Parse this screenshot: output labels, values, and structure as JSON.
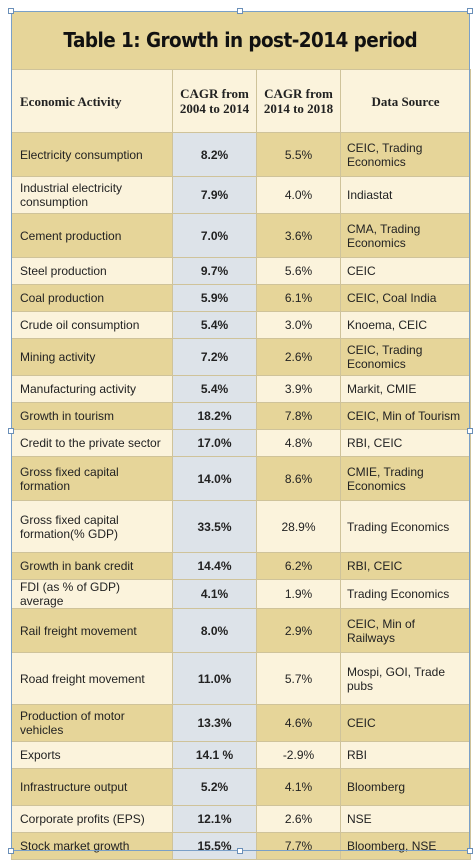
{
  "table": {
    "title": "Table 1: Growth in post-2014 period",
    "headers": [
      "Economic Activity",
      "CAGR from 2004 to 2014",
      "CAGR from 2014 to 2018",
      "Data Source"
    ],
    "rows": [
      [
        "Electricity consumption",
        "8.2%",
        "5.5%",
        "CEIC, Trading Economics"
      ],
      [
        "Industrial electricity consumption",
        "7.9%",
        "4.0%",
        "Indiastat"
      ],
      [
        "Cement production",
        "7.0%",
        "3.6%",
        "CMA, Trading Economics"
      ],
      [
        "Steel production",
        "9.7%",
        "5.6%",
        "CEIC"
      ],
      [
        "Coal production",
        "5.9%",
        "6.1%",
        "CEIC, Coal India"
      ],
      [
        "Crude oil consumption",
        "5.4%",
        "3.0%",
        "Knoema, CEIC"
      ],
      [
        "Mining activity",
        "7.2%",
        "2.6%",
        "CEIC, Trading Economics"
      ],
      [
        "Manufacturing activity",
        "5.4%",
        "3.9%",
        "Markit, CMIE"
      ],
      [
        "Growth in tourism",
        "18.2%",
        "7.8%",
        "CEIC, Min of Tourism"
      ],
      [
        "Credit to the private sector",
        "17.0%",
        "4.8%",
        "RBI, CEIC"
      ],
      [
        "Gross fixed capital formation",
        "14.0%",
        "8.6%",
        "CMIE, Trading Economics"
      ],
      [
        "Gross fixed capital formation(% GDP)",
        "33.5%",
        "28.9%",
        "Trading Economics"
      ],
      [
        "Growth in bank credit",
        "14.4%",
        "6.2%",
        "RBI, CEIC"
      ],
      [
        "FDI (as % of GDP) average",
        "4.1%",
        "1.9%",
        "Trading Economics"
      ],
      [
        "Rail freight movement",
        "8.0%",
        "2.9%",
        "CEIC, Min of Railways"
      ],
      [
        "Road freight movement",
        "11.0%",
        "5.7%",
        "Mospi, GOI, Trade pubs"
      ],
      [
        "Production of motor vehicles",
        "13.3%",
        "4.6%",
        "CEIC"
      ],
      [
        "Exports",
        "14.1 %",
        "-2.9%",
        "RBI"
      ],
      [
        "Infrastructure output",
        "5.2%",
        "4.1%",
        "Bloomberg"
      ],
      [
        "Corporate profits (EPS)",
        "12.1%",
        "2.6%",
        "NSE"
      ],
      [
        "Stock market growth",
        "15.5%",
        "7.7%",
        "Bloomberg, NSE"
      ]
    ]
  },
  "colors": {
    "header_band": "#e6d599",
    "cream": "#fbf3dc",
    "highlight_column": "#dde3e9",
    "selection_frame": "#7aa0c8"
  }
}
